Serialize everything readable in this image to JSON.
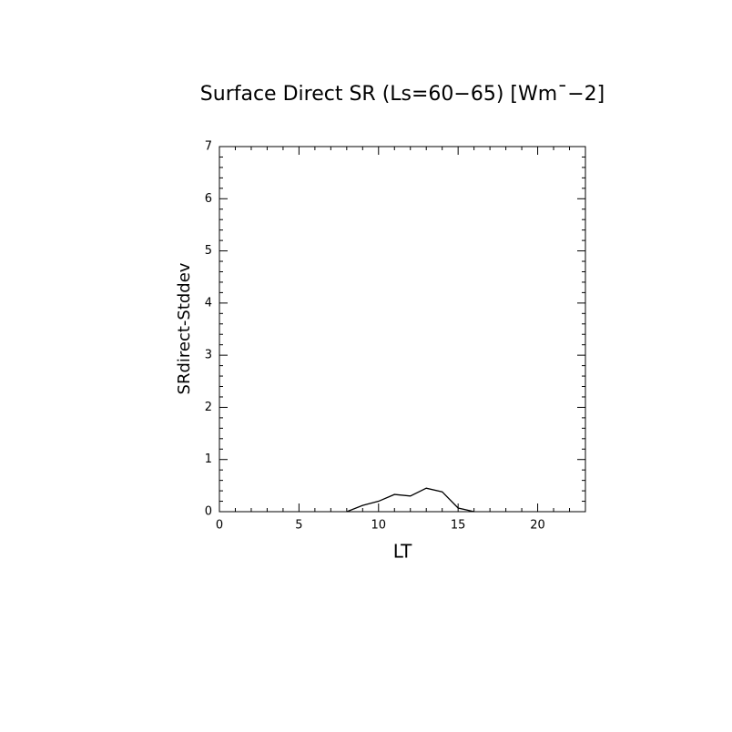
{
  "chart_data": {
    "type": "line",
    "title": "Surface Direct SR (Ls=60−65) [Wm¯−2]",
    "x_label": "LT",
    "y_label": "SRdirect-Stddev",
    "x": [
      8,
      9,
      10,
      11,
      12,
      13,
      14,
      15,
      16
    ],
    "values": [
      0,
      0.12,
      0.2,
      0.33,
      0.3,
      0.45,
      0.38,
      0.07,
      0
    ],
    "color": "#000000",
    "xlim": [
      0,
      23
    ],
    "xticks": [
      0,
      5,
      10,
      15,
      20
    ],
    "xminorticks": [
      1,
      2,
      3,
      4,
      6,
      7,
      8,
      9,
      11,
      12,
      13,
      14,
      16,
      17,
      18,
      19,
      21,
      22
    ],
    "ylim": [
      0,
      7
    ],
    "yticks": [
      0,
      1,
      2,
      3,
      4,
      5,
      6,
      7
    ],
    "yminorticks": [
      0.2,
      0.4,
      0.6,
      0.8,
      1.2,
      1.4,
      1.6,
      1.8,
      2.2,
      2.4,
      2.6,
      2.8,
      3.2,
      3.4,
      3.6,
      3.8,
      4.2,
      4.4,
      4.6,
      4.8,
      5.2,
      5.4,
      5.6,
      5.8,
      6.2,
      6.4,
      6.6,
      6.8
    ],
    "grid": false
  }
}
